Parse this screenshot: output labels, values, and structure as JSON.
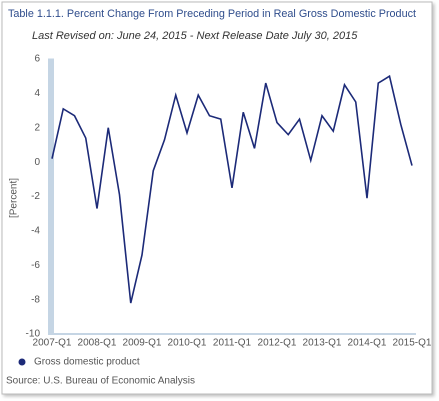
{
  "chart_data": {
    "type": "line",
    "title": "Table 1.1.1. Percent Change From Preceding Period in Real Gross Domestic Product",
    "subtitle": "Last Revised on: June 24, 2015 - Next Release Date July 30, 2015",
    "y_label": "[Percent]",
    "source": "Source: U.S. Bureau of Economic  Analysis",
    "categories": [
      "2007-Q1",
      null,
      null,
      null,
      "2008-Q1",
      null,
      null,
      null,
      "2009-Q1",
      null,
      null,
      null,
      "2010-Q1",
      null,
      null,
      null,
      "2011-Q1",
      null,
      null,
      null,
      "2012-Q1",
      null,
      null,
      null,
      "2013-Q1",
      null,
      null,
      null,
      "2014-Q1",
      null,
      null,
      null,
      "2015-Q1"
    ],
    "series": [
      {
        "name": "Gross domestic product",
        "color": "#1c2a78",
        "values": [
          0.2,
          3.1,
          2.7,
          1.4,
          -2.7,
          2.0,
          -1.9,
          -8.2,
          -5.4,
          -0.5,
          1.3,
          3.9,
          1.7,
          3.9,
          2.7,
          2.5,
          -1.5,
          2.9,
          0.8,
          4.6,
          2.3,
          1.6,
          2.5,
          0.1,
          2.7,
          1.8,
          4.5,
          3.5,
          -2.1,
          4.6,
          5.0,
          2.2,
          -0.2
        ]
      }
    ],
    "ylim": [
      -10,
      6
    ],
    "yticks": [
      -10,
      -8,
      -6,
      -4,
      -2,
      0,
      2,
      4,
      6
    ],
    "legend": "bottom-left",
    "grid": false
  }
}
